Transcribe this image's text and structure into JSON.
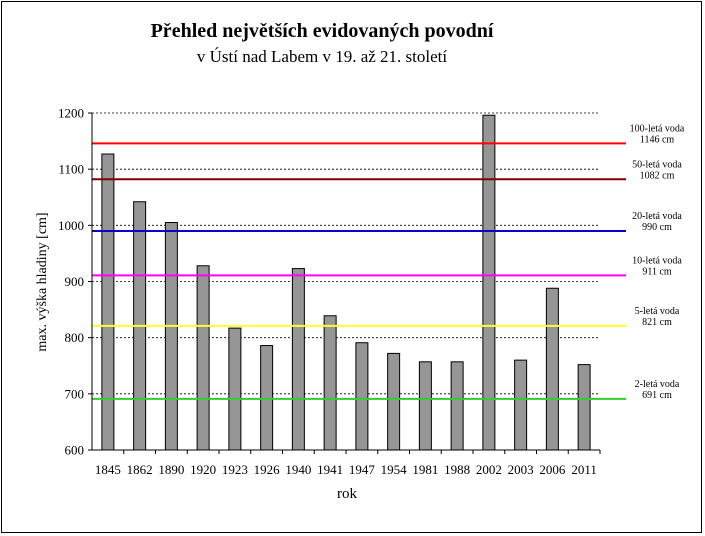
{
  "chart_data": {
    "type": "bar",
    "title": "Přehled největších evidovaných povodní",
    "subtitle": "v Ústí nad Labem v 19. až 21. století",
    "xlabel": "rok",
    "ylabel": "max. výška hladiny  [cm]",
    "ylim": [
      600,
      1200
    ],
    "yticks": [
      600,
      700,
      800,
      900,
      1000,
      1100,
      1200
    ],
    "grid": true,
    "categories": [
      "1845",
      "1862",
      "1890",
      "1920",
      "1923",
      "1926",
      "1940",
      "1941",
      "1947",
      "1954",
      "1981",
      "1988",
      "2002",
      "2003",
      "2006",
      "2011"
    ],
    "values": [
      1127,
      1042,
      1005,
      928,
      817,
      786,
      923,
      839,
      791,
      772,
      757,
      757,
      1196,
      760,
      888,
      752
    ],
    "bar_color": "#969696",
    "reference_lines": [
      {
        "label": "100-letá voda",
        "value_text": "1146 cm",
        "value": 1146,
        "color": "#ff0000"
      },
      {
        "label": "50-letá voda",
        "value_text": "1082 cm",
        "value": 1082,
        "color": "#800000"
      },
      {
        "label": "20-letá voda",
        "value_text": "990 cm",
        "value": 990,
        "color": "#0000cc"
      },
      {
        "label": "10-letá voda",
        "value_text": "911 cm",
        "value": 911,
        "color": "#ff00ff"
      },
      {
        "label": "5-letá voda",
        "value_text": "821 cm",
        "value": 821,
        "color": "#ffff33"
      },
      {
        "label": "2-letá voda",
        "value_text": "691 cm",
        "value": 691,
        "color": "#33cc33"
      }
    ]
  }
}
